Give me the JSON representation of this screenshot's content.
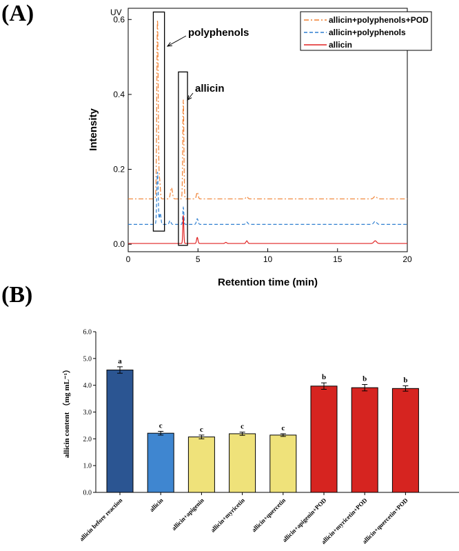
{
  "panels": {
    "a_label": "(A)",
    "b_label": "(B)"
  },
  "chart_data": [
    {
      "type": "line",
      "title": "",
      "corner_label": "UV",
      "xlabel": "Retention time (min)",
      "ylabel": "Intensity",
      "xlim": [
        0,
        20
      ],
      "ylim": [
        -0.02,
        0.63
      ],
      "xticks": [
        0,
        5,
        10,
        15,
        20
      ],
      "yticks": [
        0.0,
        0.2,
        0.4,
        0.6
      ],
      "ytick_labels": [
        "0.0",
        "0.2",
        "0.4",
        "0.6"
      ],
      "annotations": [
        {
          "text": "polyphenols",
          "x_range": [
            1.8,
            2.6
          ],
          "y_range": [
            0.035,
            0.62
          ]
        },
        {
          "text": "allicin",
          "x_range": [
            3.6,
            4.25
          ],
          "y_range": [
            -0.003,
            0.46
          ]
        }
      ],
      "series": [
        {
          "name": "allicin+polyphenols+POD",
          "color": "#f07f2f",
          "dash": "dashdot",
          "baseline": 0.121,
          "peaks": [
            {
              "x": 2.1,
              "h": 0.477,
              "w": 0.05
            },
            {
              "x": 2.25,
              "h": 0.05,
              "w": 0.05
            },
            {
              "x": 3.1,
              "h": 0.03,
              "w": 0.07
            },
            {
              "x": 3.95,
              "h": 0.265,
              "w": 0.04
            },
            {
              "x": 4.95,
              "h": 0.018,
              "w": 0.06
            },
            {
              "x": 8.5,
              "h": 0.006,
              "w": 0.07
            },
            {
              "x": 17.7,
              "h": 0.007,
              "w": 0.1
            }
          ]
        },
        {
          "name": "allicin+polyphenols",
          "color": "#2f7fd0",
          "dash": "dashed",
          "baseline": 0.053,
          "peaks": [
            {
              "x": 2.1,
              "h": 0.14,
              "w": 0.05
            },
            {
              "x": 2.3,
              "h": 0.03,
              "w": 0.05
            },
            {
              "x": 3.0,
              "h": 0.01,
              "w": 0.06
            },
            {
              "x": 3.95,
              "h": 0.045,
              "w": 0.04
            },
            {
              "x": 4.95,
              "h": 0.015,
              "w": 0.06
            },
            {
              "x": 8.5,
              "h": 0.006,
              "w": 0.07
            },
            {
              "x": 17.7,
              "h": 0.008,
              "w": 0.1
            }
          ]
        },
        {
          "name": "allicin",
          "color": "#e02020",
          "dash": "solid",
          "baseline": 0.002,
          "peaks": [
            {
              "x": 3.95,
              "h": 0.075,
              "w": 0.035
            },
            {
              "x": 4.95,
              "h": 0.016,
              "w": 0.05
            },
            {
              "x": 7.0,
              "h": 0.003,
              "w": 0.06
            },
            {
              "x": 8.5,
              "h": 0.007,
              "w": 0.06
            },
            {
              "x": 17.7,
              "h": 0.007,
              "w": 0.1
            }
          ]
        }
      ]
    },
    {
      "type": "bar",
      "title": "",
      "xlabel": "",
      "ylabel": "allicin content （mg mL⁻¹）",
      "ylim": [
        0,
        6.0
      ],
      "yticks": [
        0.0,
        1.0,
        2.0,
        3.0,
        4.0,
        5.0,
        6.0
      ],
      "ytick_labels": [
        "0.0",
        "1.0",
        "2.0",
        "3.0",
        "4.0",
        "5.0",
        "6.0"
      ],
      "categories": [
        "allicin before reaction",
        "allicin",
        "allicin+apigenin",
        "allicin+myricetin",
        "allicin+quercetin",
        "allicin+apigenin+POD",
        "allicin+myricetin+POD",
        "allicin+quercetin+POD"
      ],
      "values": [
        4.57,
        2.21,
        2.07,
        2.19,
        2.14,
        3.97,
        3.91,
        3.88
      ],
      "errors": [
        0.12,
        0.07,
        0.07,
        0.06,
        0.05,
        0.12,
        0.12,
        0.1
      ],
      "letters": [
        "a",
        "c",
        "c",
        "c",
        "c",
        "b",
        "b",
        "b"
      ],
      "colors": [
        "#2b5592",
        "#3f86d0",
        "#efe27a",
        "#efe27a",
        "#efe27a",
        "#d62420",
        "#d62420",
        "#d62420"
      ]
    }
  ]
}
